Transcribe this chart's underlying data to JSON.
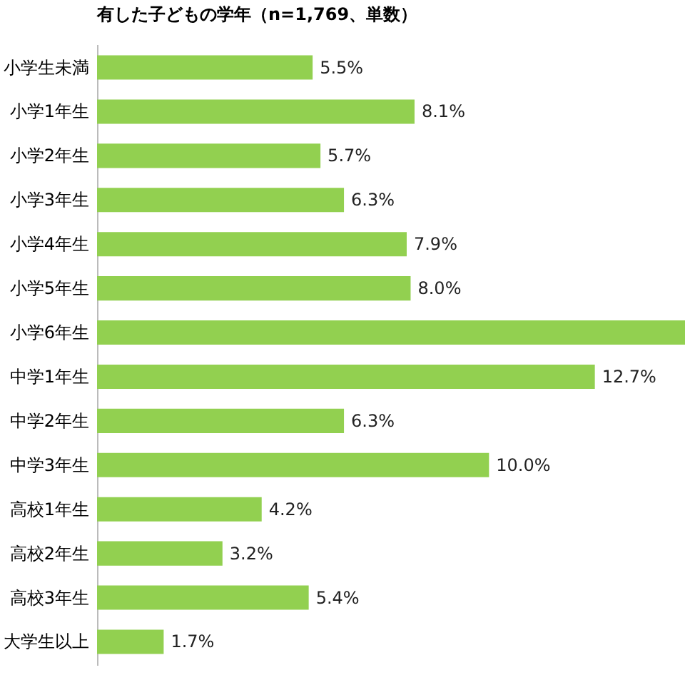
{
  "chart_data": {
    "type": "bar",
    "orientation": "horizontal",
    "title": "有した子どもの学年（n=1,769、単数）",
    "categories": [
      "小学生未満",
      "小学1年生",
      "小学2年生",
      "小学3年生",
      "小学4年生",
      "小学5年生",
      "小学6年生",
      "中学1年生",
      "中学2年生",
      "中学3年生",
      "高校1年生",
      "高校2年生",
      "高校3年生",
      "大学生以上"
    ],
    "values": [
      5.5,
      8.1,
      5.7,
      6.3,
      7.9,
      8.0,
      15.0,
      12.7,
      6.3,
      10.0,
      4.2,
      3.2,
      5.4,
      1.7
    ],
    "value_labels": [
      "5.5%",
      "8.1%",
      "5.7%",
      "6.3%",
      "7.9%",
      "8.0%",
      null,
      "12.7%",
      "6.3%",
      "10.0%",
      "4.2%",
      "3.2%",
      "5.4%",
      "1.7%"
    ],
    "color": "#92d050"
  }
}
